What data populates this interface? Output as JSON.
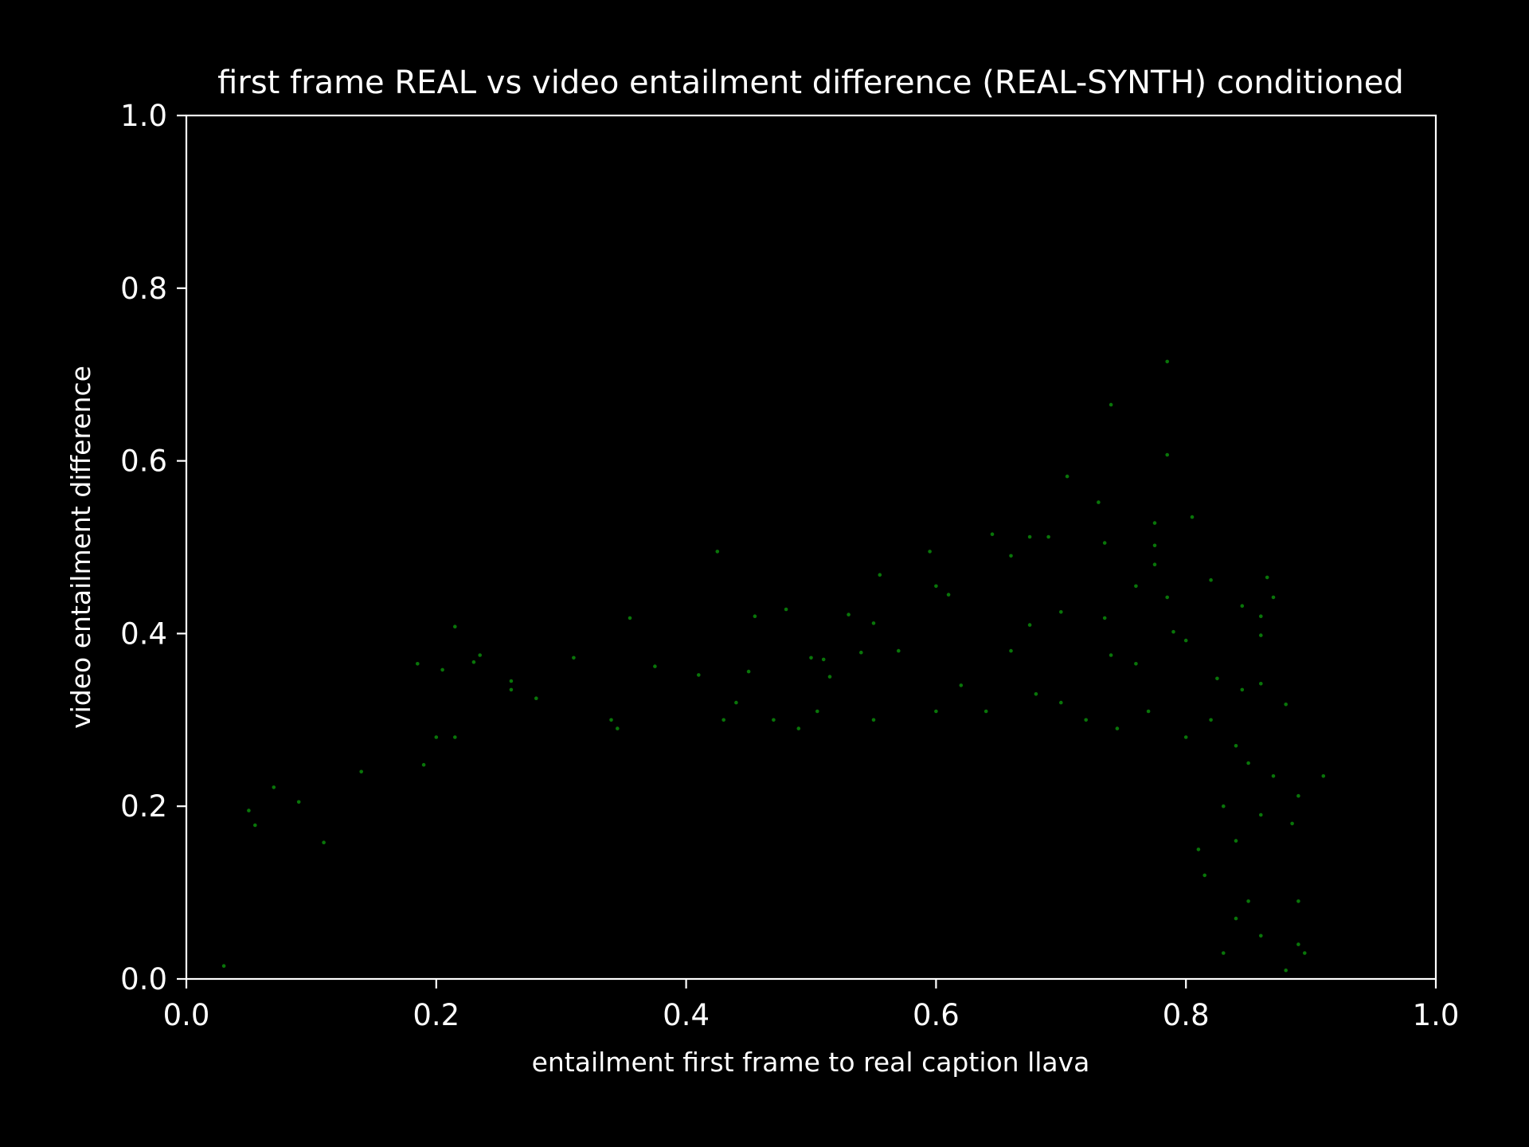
{
  "chart_data": {
    "type": "scatter",
    "title": "first frame REAL vs video entailment difference (REAL-SYNTH) conditioned",
    "xlabel": "entailment first frame to real caption llava",
    "ylabel": "video entailment difference",
    "xlim": [
      0.0,
      1.0
    ],
    "ylim": [
      0.0,
      1.0
    ],
    "x_ticks": [
      0.0,
      0.2,
      0.4,
      0.6,
      0.8,
      1.0
    ],
    "y_ticks": [
      0.0,
      0.2,
      0.4,
      0.6,
      0.8,
      1.0
    ],
    "x_tick_labels": [
      "0.0",
      "0.2",
      "0.4",
      "0.6",
      "0.8",
      "1.0"
    ],
    "y_tick_labels": [
      "0.0",
      "0.2",
      "0.4",
      "0.6",
      "0.8",
      "1.0"
    ],
    "grid": false,
    "legend": "none",
    "colors": {
      "background": "#000000",
      "axes": "#ffffff",
      "text": "#ffffff",
      "points": "#0a8a0a"
    },
    "series": [
      {
        "points": [
          [
            0.785,
            0.715
          ],
          [
            0.74,
            0.665
          ],
          [
            0.785,
            0.607
          ],
          [
            0.705,
            0.582
          ],
          [
            0.73,
            0.552
          ],
          [
            0.775,
            0.528
          ],
          [
            0.805,
            0.535
          ],
          [
            0.735,
            0.505
          ],
          [
            0.775,
            0.502
          ],
          [
            0.645,
            0.515
          ],
          [
            0.675,
            0.512
          ],
          [
            0.69,
            0.512
          ],
          [
            0.595,
            0.495
          ],
          [
            0.425,
            0.495
          ],
          [
            0.66,
            0.49
          ],
          [
            0.775,
            0.48
          ],
          [
            0.82,
            0.462
          ],
          [
            0.865,
            0.465
          ],
          [
            0.555,
            0.468
          ],
          [
            0.6,
            0.455
          ],
          [
            0.61,
            0.445
          ],
          [
            0.76,
            0.455
          ],
          [
            0.785,
            0.442
          ],
          [
            0.845,
            0.432
          ],
          [
            0.87,
            0.442
          ],
          [
            0.355,
            0.418
          ],
          [
            0.215,
            0.408
          ],
          [
            0.455,
            0.42
          ],
          [
            0.48,
            0.428
          ],
          [
            0.55,
            0.412
          ],
          [
            0.53,
            0.422
          ],
          [
            0.675,
            0.41
          ],
          [
            0.7,
            0.425
          ],
          [
            0.735,
            0.418
          ],
          [
            0.79,
            0.402
          ],
          [
            0.8,
            0.392
          ],
          [
            0.86,
            0.42
          ],
          [
            0.86,
            0.398
          ],
          [
            0.235,
            0.375
          ],
          [
            0.23,
            0.367
          ],
          [
            0.31,
            0.372
          ],
          [
            0.185,
            0.365
          ],
          [
            0.205,
            0.358
          ],
          [
            0.375,
            0.362
          ],
          [
            0.45,
            0.356
          ],
          [
            0.26,
            0.345
          ],
          [
            0.26,
            0.335
          ],
          [
            0.28,
            0.325
          ],
          [
            0.41,
            0.352
          ],
          [
            0.51,
            0.37
          ],
          [
            0.5,
            0.372
          ],
          [
            0.515,
            0.35
          ],
          [
            0.54,
            0.378
          ],
          [
            0.57,
            0.38
          ],
          [
            0.66,
            0.38
          ],
          [
            0.74,
            0.375
          ],
          [
            0.76,
            0.365
          ],
          [
            0.825,
            0.348
          ],
          [
            0.845,
            0.335
          ],
          [
            0.86,
            0.342
          ],
          [
            0.88,
            0.318
          ],
          [
            0.91,
            0.235
          ],
          [
            0.89,
            0.212
          ],
          [
            0.885,
            0.18
          ],
          [
            0.86,
            0.19
          ],
          [
            0.87,
            0.235
          ],
          [
            0.89,
            0.09
          ],
          [
            0.895,
            0.03
          ],
          [
            0.89,
            0.04
          ],
          [
            0.88,
            0.01
          ],
          [
            0.05,
            0.195
          ],
          [
            0.07,
            0.222
          ],
          [
            0.09,
            0.205
          ],
          [
            0.055,
            0.178
          ],
          [
            0.03,
            0.015
          ],
          [
            0.11,
            0.158
          ],
          [
            0.14,
            0.24
          ],
          [
            0.19,
            0.248
          ],
          [
            0.2,
            0.28
          ],
          [
            0.215,
            0.28
          ],
          [
            0.34,
            0.3
          ],
          [
            0.345,
            0.29
          ],
          [
            0.43,
            0.3
          ],
          [
            0.44,
            0.32
          ],
          [
            0.47,
            0.3
          ],
          [
            0.49,
            0.29
          ],
          [
            0.505,
            0.31
          ],
          [
            0.55,
            0.3
          ],
          [
            0.6,
            0.31
          ],
          [
            0.62,
            0.34
          ],
          [
            0.64,
            0.31
          ],
          [
            0.68,
            0.33
          ],
          [
            0.7,
            0.32
          ],
          [
            0.72,
            0.3
          ],
          [
            0.745,
            0.29
          ],
          [
            0.77,
            0.31
          ],
          [
            0.8,
            0.28
          ],
          [
            0.82,
            0.3
          ],
          [
            0.84,
            0.27
          ],
          [
            0.85,
            0.25
          ],
          [
            0.83,
            0.2
          ],
          [
            0.84,
            0.16
          ],
          [
            0.815,
            0.12
          ],
          [
            0.85,
            0.09
          ],
          [
            0.86,
            0.05
          ],
          [
            0.83,
            0.03
          ],
          [
            0.84,
            0.07
          ],
          [
            0.81,
            0.15
          ]
        ]
      }
    ]
  }
}
